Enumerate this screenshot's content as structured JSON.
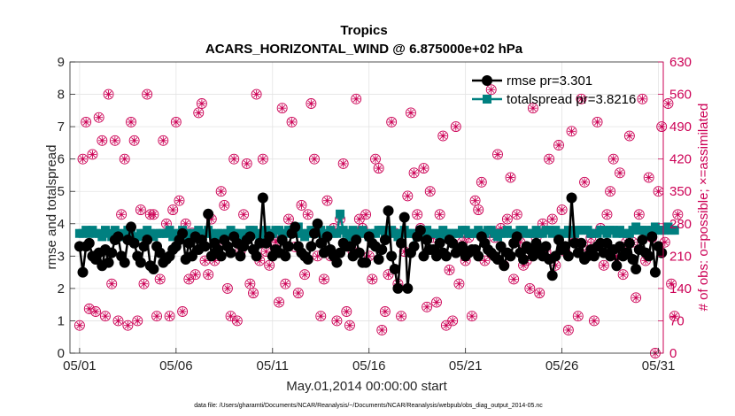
{
  "chart_data": {
    "type": "line",
    "title": "Tropics",
    "subtitle": "ACARS_HORIZONTAL_WIND @ 6.875000e+02 hPa",
    "xlabel": "May.01,2014 00:00:00 start",
    "ylabel_left": "rmse and totalspread",
    "ylabel_right": "# of obs: o=possible; ×=assimilated",
    "footnote": "data file: /Users/gharamti/Documents/NCAR/Reanalysis/~/Documents/NCAR/Reanalysis/webpub/obs_diag_output_2014-05.nc",
    "xlim": [
      0.5,
      31.25
    ],
    "ylim_left": [
      0,
      9
    ],
    "ylim_right": [
      0,
      630
    ],
    "x_ticks": [
      1,
      6,
      11,
      16,
      21,
      26,
      31
    ],
    "x_tick_labels": [
      "05/01",
      "05/06",
      "05/11",
      "05/16",
      "05/21",
      "05/26",
      "05/31"
    ],
    "y_ticks_left": [
      0,
      1,
      2,
      3,
      4,
      5,
      6,
      7,
      8,
      9
    ],
    "y_ticks_right": [
      0,
      70,
      140,
      210,
      280,
      350,
      420,
      490,
      560,
      630
    ],
    "grid": true,
    "legend_position": "top-right",
    "colors": {
      "rmse": "#000000",
      "totalspread": "#008080",
      "obs": "#cc0055"
    },
    "series": [
      {
        "name": "rmse",
        "legend": "rmse pr=3.301",
        "y": [
          3.3,
          2.5,
          3.3,
          3.4,
          3.0,
          2.9,
          3.1,
          2.7,
          3.2,
          2.8,
          3.1,
          3.5,
          3.6,
          3.0,
          2.8,
          3.5,
          3.9,
          3.4,
          3.0,
          2.8,
          3.3,
          3.5,
          2.7,
          2.6,
          3.3,
          3.1,
          2.8,
          2.9,
          3.0,
          3.2,
          3.3,
          3.5,
          3.7,
          2.9,
          3.4,
          3.0,
          3.6,
          3.2,
          3.5,
          3.3,
          4.3,
          3.0,
          3.4,
          3.2,
          3.0,
          3.5,
          3.3,
          3.1,
          3.6,
          3.4,
          3.0,
          3.3,
          3.5,
          3.6,
          3.2,
          3.0,
          3.4,
          4.8,
          3.4,
          3.6,
          3.0,
          3.2,
          3.1,
          3.5,
          3.0,
          3.3,
          3.7,
          3.9,
          3.3,
          3.1,
          3.0,
          2.9,
          3.3,
          3.7,
          4.0,
          3.4,
          3.1,
          3.6,
          3.2,
          3.0,
          2.8,
          3.1,
          3.4,
          3.3,
          3.3,
          3.0,
          3.5,
          3.1,
          2.8,
          2.8,
          3.6,
          3.4,
          3.3,
          2.9,
          3.2,
          3.5,
          4.4,
          3.0,
          2.6,
          2.0,
          3.4,
          4.2,
          2.0,
          3.1,
          3.3,
          3.6,
          3.8,
          3.0,
          3.5,
          3.2,
          3.2,
          3.0,
          3.4,
          3.1,
          3.0,
          3.5,
          3.4,
          3.1,
          3.2,
          3.3,
          3.0,
          3.1,
          3.2,
          3.2,
          3.0,
          3.6,
          3.4,
          3.2,
          3.1,
          3.0,
          2.9,
          3.3,
          2.7,
          3.1,
          3.0,
          3.4,
          3.6,
          3.1,
          2.9,
          3.3,
          3.2,
          3.0,
          3.4,
          3.2,
          3.0,
          3.3,
          2.9,
          2.4,
          3.0,
          3.5,
          3.2,
          3.3,
          3.0,
          4.8,
          3.4,
          3.1,
          3.4,
          2.9,
          3.0,
          3.2,
          3.0,
          3.3,
          3.4,
          3.1,
          3.4,
          3.0,
          3.2,
          2.7,
          3.3,
          3.0,
          3.1,
          3.4,
          2.9,
          2.6,
          3.2,
          3.5,
          3.1,
          3.0,
          3.6,
          2.5,
          3.3,
          3.1
        ]
      },
      {
        "name": "totalspread",
        "legend": "totalspread pr=3.8216",
        "y": [
          3.7,
          3.7,
          3.8,
          3.7,
          3.8,
          3.7,
          3.7,
          3.6,
          3.8,
          3.7,
          3.6,
          3.8,
          3.7,
          3.6,
          3.7,
          3.8,
          3.7,
          3.6,
          3.6,
          3.7,
          3.7,
          3.8,
          3.7,
          3.6,
          3.7,
          3.7,
          3.7,
          3.7,
          3.8,
          3.6,
          3.7,
          3.7,
          3.8,
          3.7,
          3.6,
          3.7,
          3.7,
          3.8,
          3.7,
          3.7,
          3.8,
          3.7,
          3.6,
          3.7,
          3.7,
          3.6,
          3.7,
          3.8,
          3.7,
          3.7,
          3.7,
          3.6,
          3.7,
          3.8,
          3.8,
          3.7,
          3.6,
          3.7,
          3.8,
          3.7,
          3.7,
          3.8,
          3.8,
          3.7,
          3.7,
          3.8,
          3.8,
          3.7,
          3.9,
          3.7,
          3.6,
          3.7,
          3.8,
          3.7,
          3.9,
          3.8,
          3.6,
          3.7,
          3.8,
          3.7,
          3.7,
          4.3,
          3.8,
          3.7,
          3.6,
          3.8,
          3.7,
          3.7,
          3.8,
          3.7,
          3.6,
          3.7,
          3.7,
          3.8,
          3.8,
          3.7,
          3.7,
          3.8,
          3.7,
          3.6,
          3.7,
          3.8,
          3.7,
          3.7,
          3.7,
          3.6,
          3.8,
          3.7,
          3.8,
          3.7,
          3.7,
          3.7,
          3.6,
          3.8,
          3.7,
          3.7,
          3.7,
          3.7,
          3.7,
          3.8,
          3.8,
          3.7,
          3.7,
          3.7,
          3.8,
          3.7,
          3.7,
          3.8,
          3.8,
          3.7,
          3.6,
          3.7,
          3.7,
          3.8,
          3.7,
          3.7,
          3.7,
          3.8,
          3.8,
          3.7,
          3.7,
          3.7,
          3.8,
          3.7,
          3.7,
          3.8,
          3.8,
          3.7,
          3.8,
          3.7,
          3.7,
          3.7,
          3.8,
          3.7,
          3.7,
          3.8,
          3.8,
          3.8,
          3.8,
          3.7,
          3.7,
          3.7,
          3.8,
          3.8,
          3.7,
          3.8,
          3.8,
          3.7,
          3.8,
          3.7,
          3.7,
          3.7,
          3.8,
          3.9,
          3.8,
          3.8,
          3.8,
          3.7,
          3.8,
          3.9,
          3.8,
          3.8,
          3.8,
          3.9,
          3.8,
          3.8
        ]
      },
      {
        "name": "obs_count",
        "axis": "right",
        "y": [
          60,
          420,
          500,
          96,
          430,
          90,
          510,
          460,
          80,
          560,
          150,
          460,
          70,
          300,
          420,
          60,
          500,
          460,
          70,
          310,
          150,
          560,
          300,
          300,
          80,
          160,
          460,
          280,
          80,
          310,
          500,
          330,
          90,
          280,
          160,
          260,
          170,
          520,
          540,
          200,
          170,
          290,
          200,
          230,
          350,
          320,
          140,
          80,
          420,
          70,
          220,
          300,
          410,
          150,
          130,
          560,
          200,
          420,
          220,
          190,
          250,
          240,
          110,
          530,
          150,
          290,
          500,
          230,
          130,
          320,
          170,
          300,
          540,
          420,
          210,
          80,
          160,
          330,
          210,
          270,
          70,
          290,
          410,
          90,
          60,
          220,
          550,
          290,
          270,
          300,
          210,
          160,
          420,
          400,
          50,
          90,
          170,
          500,
          260,
          150,
          80,
          220,
          340,
          520,
          390,
          300,
          270,
          400,
          100,
          350,
          250,
          110,
          300,
          470,
          60,
          180,
          70,
          490,
          150,
          240,
          200,
          250,
          80,
          330,
          310,
          370,
          200,
          260,
          570,
          250,
          430,
          270,
          190,
          290,
          380,
          160,
          300,
          240,
          190,
          200,
          140,
          530,
          250,
          130,
          280,
          220,
          420,
          290,
          190,
          450,
          310,
          220,
          50,
          480,
          240,
          80,
          550,
          370,
          230,
          250,
          70,
          500,
          270,
          190,
          300,
          350,
          420,
          210,
          390,
          170,
          240,
          470,
          240,
          120,
          300,
          550,
          200,
          380,
          250,
          0,
          350,
          490,
          240,
          540,
          150,
          80,
          300
        ]
      }
    ],
    "x_start": 1,
    "x_step": 0.16667
  }
}
